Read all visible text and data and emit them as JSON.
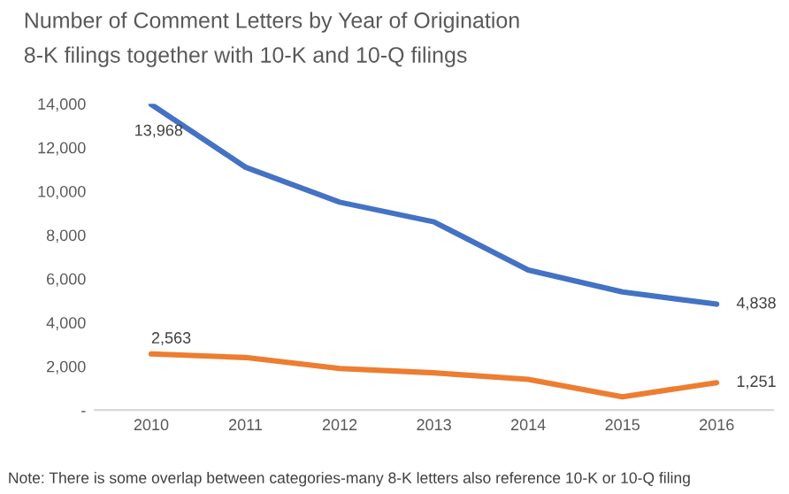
{
  "chart_data": {
    "type": "line",
    "title": "Number of Comment Letters by Year of Origination",
    "subtitle": "8-K filings together with 10-K and 10-Q filings",
    "categories": [
      "2010",
      "2011",
      "2012",
      "2013",
      "2014",
      "2015",
      "2016"
    ],
    "series": [
      {
        "color": "#4472c4",
        "values": [
          13968,
          11100,
          9500,
          8600,
          6400,
          5400,
          4838
        ],
        "value_labels": [
          "13,968",
          null,
          null,
          null,
          null,
          null,
          "4,838"
        ]
      },
      {
        "color": "#ed7d31",
        "values": [
          2563,
          2400,
          1900,
          1700,
          1400,
          600,
          1251
        ],
        "value_labels": [
          "2,563",
          null,
          null,
          null,
          null,
          null,
          "1,251"
        ]
      }
    ],
    "ylim": [
      0,
      14000
    ],
    "yticks": [
      {
        "value": 0,
        "label": "-"
      },
      {
        "value": 2000,
        "label": "2,000"
      },
      {
        "value": 4000,
        "label": "4,000"
      },
      {
        "value": 6000,
        "label": "6,000"
      },
      {
        "value": 8000,
        "label": "8,000"
      },
      {
        "value": 10000,
        "label": "10,000"
      },
      {
        "value": 12000,
        "label": "12,000"
      },
      {
        "value": 14000,
        "label": "14,000"
      }
    ],
    "grid": false,
    "legend": false,
    "marker": "none",
    "line_style": "solid",
    "annotations": [
      "Note: There is some overlap between categories-many 8-K letters also reference 10-K or 10-Q filing"
    ]
  }
}
